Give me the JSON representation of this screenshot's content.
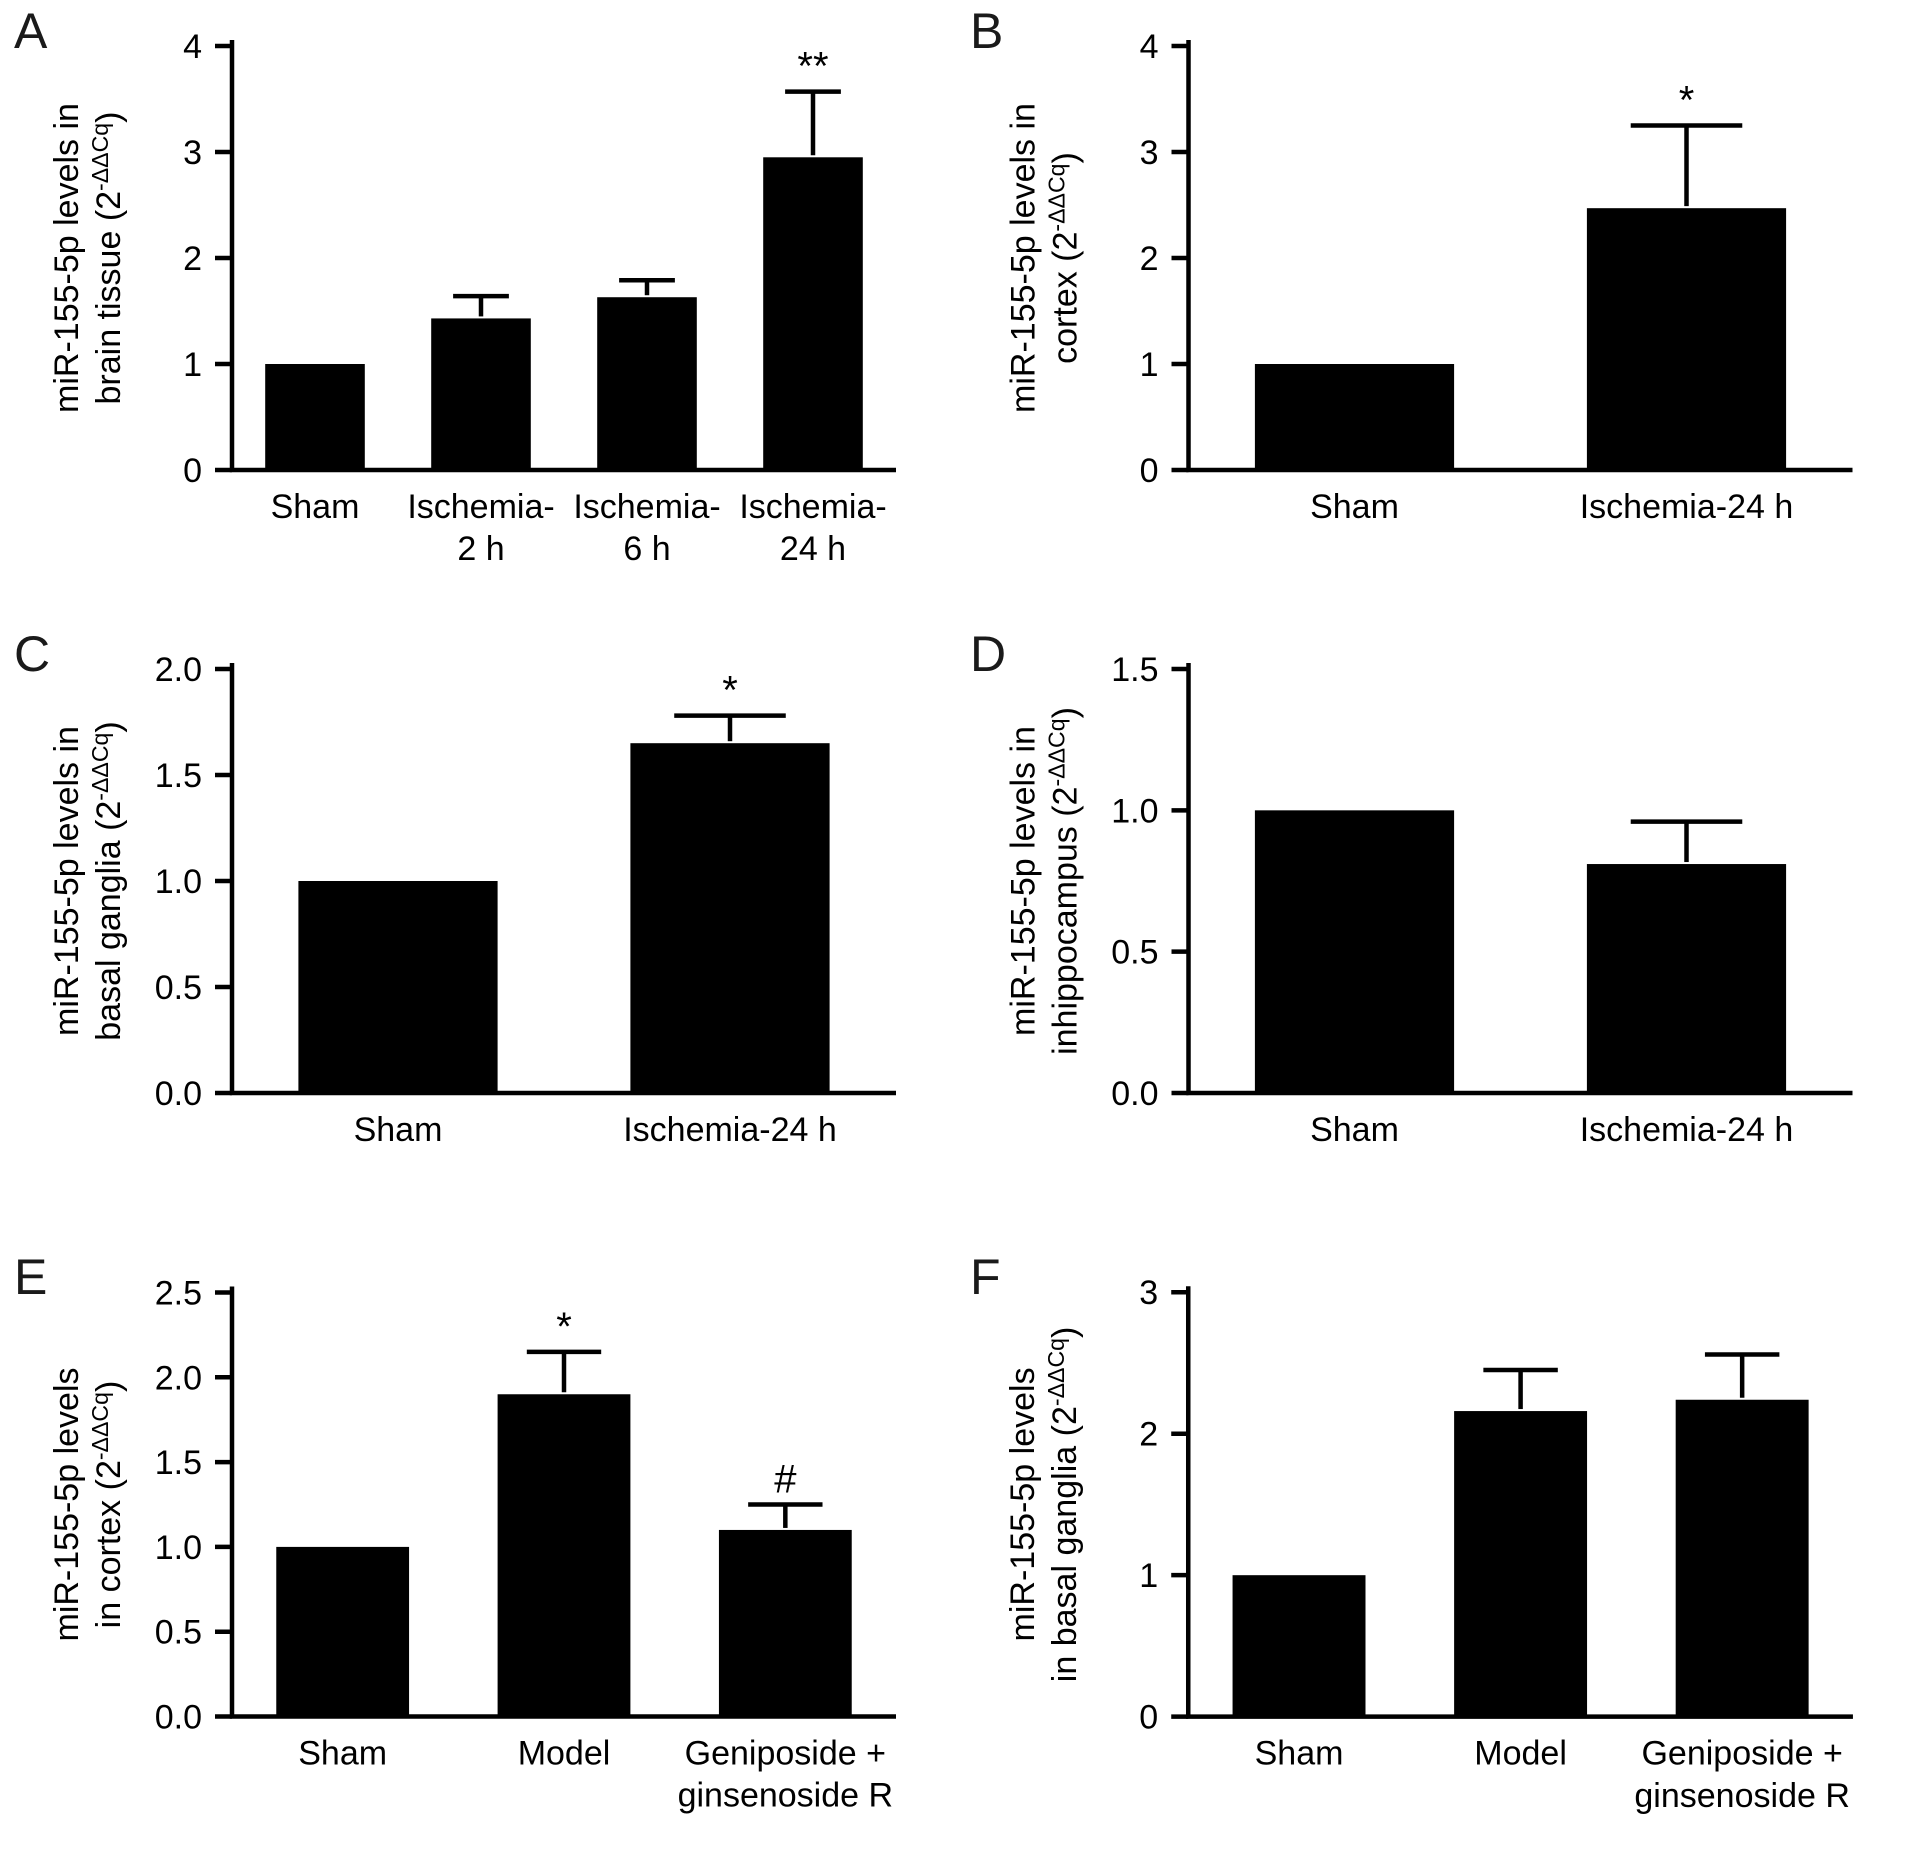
{
  "figure": {
    "background": "#ffffff",
    "bar_color": "#000000",
    "text_color": "#000000"
  },
  "chart_data": [
    {
      "panel": "A",
      "type": "bar",
      "ylabel_lines": [
        "miR-155-5p levels in",
        "brain tissue (2^{-ΔΔCq})"
      ],
      "categories": [
        "Sham",
        "Ischemia-\n2 h",
        "Ischemia-\n6 h",
        "Ischemia-\n24 h"
      ],
      "values": [
        1.0,
        1.43,
        1.63,
        2.95
      ],
      "errors": [
        0,
        0.21,
        0.16,
        0.62
      ],
      "annotations": [
        "",
        "",
        "",
        "**"
      ],
      "ylim": [
        0,
        4
      ],
      "yticks": [
        "0",
        "1",
        "2",
        "3",
        "4"
      ]
    },
    {
      "panel": "B",
      "type": "bar",
      "ylabel_lines": [
        "miR-155-5p levels in",
        "cortex (2^{-ΔΔCq})"
      ],
      "categories": [
        "Sham",
        "Ischemia-24 h"
      ],
      "values": [
        1.0,
        2.47
      ],
      "errors": [
        0,
        0.78
      ],
      "annotations": [
        "",
        "*"
      ],
      "ylim": [
        0,
        4
      ],
      "yticks": [
        "0",
        "1",
        "2",
        "3",
        "4"
      ]
    },
    {
      "panel": "C",
      "type": "bar",
      "ylabel_lines": [
        "miR-155-5p levels in",
        "basal ganglia (2^{-ΔΔCq})"
      ],
      "categories": [
        "Sham",
        "Ischemia-24 h"
      ],
      "values": [
        1.0,
        1.65
      ],
      "errors": [
        0,
        0.13
      ],
      "annotations": [
        "",
        "*"
      ],
      "ylim": [
        0,
        2
      ],
      "yticks": [
        "0.0",
        "0.5",
        "1.0",
        "1.5",
        "2.0"
      ]
    },
    {
      "panel": "D",
      "type": "bar",
      "ylabel_lines": [
        "miR-155-5p levels in",
        "inhippocampus (2^{-ΔΔCq})"
      ],
      "categories": [
        "Sham",
        "Ischemia-24 h"
      ],
      "values": [
        1.0,
        0.81
      ],
      "errors": [
        0,
        0.15
      ],
      "annotations": [
        "",
        ""
      ],
      "ylim": [
        0,
        1.5
      ],
      "yticks": [
        "0.0",
        "0.5",
        "1.0",
        "1.5"
      ]
    },
    {
      "panel": "E",
      "type": "bar",
      "ylabel_lines": [
        "miR-155-5p levels",
        "in cortex (2^{-ΔΔCq})"
      ],
      "categories": [
        "Sham",
        "Model",
        "Geniposide +\nginsenoside R"
      ],
      "values": [
        1.0,
        1.9,
        1.1
      ],
      "errors": [
        0,
        0.25,
        0.15
      ],
      "annotations": [
        "",
        "*",
        "#"
      ],
      "ylim": [
        0,
        2.5
      ],
      "yticks": [
        "0.0",
        "0.5",
        "1.0",
        "1.5",
        "2.0",
        "2.5"
      ]
    },
    {
      "panel": "F",
      "type": "bar",
      "ylabel_lines": [
        "miR-155-5p levels",
        "in basal ganglia (2^{-ΔΔCq})"
      ],
      "categories": [
        "Sham",
        "Model",
        "Geniposide +\nginsenoside R"
      ],
      "values": [
        1.0,
        2.16,
        2.24
      ],
      "errors": [
        0,
        0.29,
        0.32
      ],
      "annotations": [
        "",
        "",
        ""
      ],
      "ylim": [
        0,
        3
      ],
      "yticks": [
        "0",
        "1",
        "2",
        "3"
      ]
    }
  ]
}
